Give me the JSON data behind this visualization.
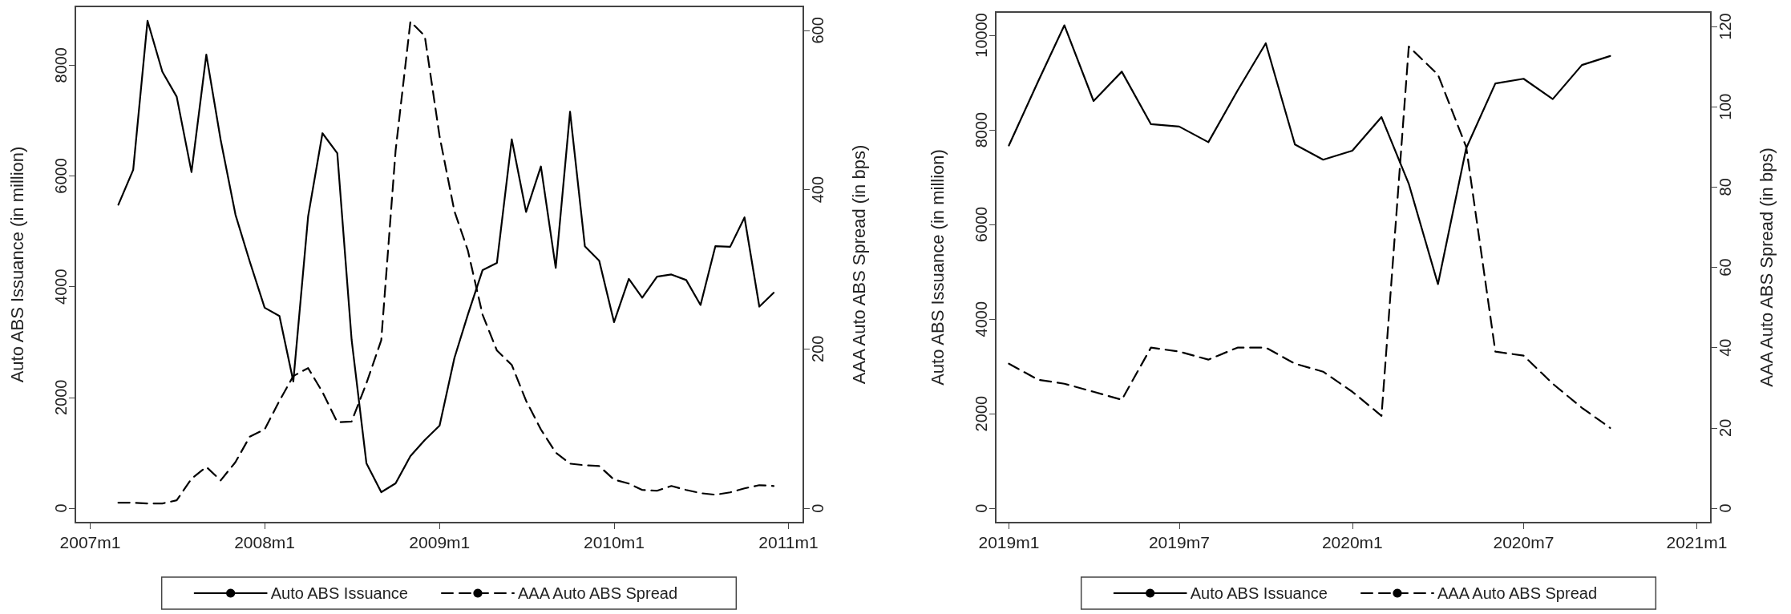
{
  "chart_data": [
    {
      "type": "line",
      "ylabel": "Auto ABS Issuance (in million)",
      "y2label": "AAA Auto ABS Spread (in bps)",
      "x": [
        "2007-03",
        "2007-04",
        "2007-05",
        "2007-06",
        "2007-07",
        "2007-08",
        "2007-09",
        "2007-10",
        "2007-11",
        "2007-12",
        "2008-01",
        "2008-02",
        "2008-03",
        "2008-04",
        "2008-05",
        "2008-06",
        "2008-07",
        "2008-08",
        "2008-09",
        "2008-10",
        "2008-11",
        "2008-12",
        "2009-01",
        "2009-02",
        "2009-03",
        "2009-04",
        "2009-05",
        "2009-06",
        "2009-07",
        "2009-08",
        "2009-09",
        "2009-10",
        "2009-11",
        "2009-12",
        "2010-01",
        "2010-02",
        "2010-03",
        "2010-04",
        "2010-05",
        "2010-06",
        "2010-07",
        "2010-08",
        "2010-09",
        "2010-10",
        "2010-11",
        "2010-12"
      ],
      "series": [
        {
          "name": "Auto ABS Issuance",
          "color": "#000000",
          "line_style": "solid",
          "values": [
            5480,
            6110,
            8800,
            7880,
            7430,
            6070,
            8190,
            6650,
            5300,
            4450,
            3620,
            3470,
            2290,
            5270,
            6770,
            6410,
            3040,
            810,
            290,
            450,
            940,
            1230,
            1490,
            2710,
            3490,
            4300,
            4430,
            6660,
            5350,
            6170,
            4340,
            7160,
            4730,
            4470,
            3360,
            4140,
            3800,
            4180,
            4220,
            4120,
            3670,
            4730,
            4720,
            5250,
            3640,
            3890
          ]
        },
        {
          "name": "AAA Auto ABS Spread",
          "color": "#000000",
          "line_style": "dashed",
          "axis": "y2",
          "values": [
            7,
            7,
            6,
            6,
            10,
            37,
            52,
            35,
            58,
            90,
            99,
            135,
            166,
            176,
            146,
            108,
            109,
            157,
            211,
            449,
            611,
            593,
            467,
            373,
            324,
            243,
            198,
            180,
            135,
            99,
            70,
            56,
            54,
            53,
            36,
            31,
            23,
            22,
            28,
            23,
            19,
            17,
            20,
            25,
            29,
            28
          ]
        }
      ],
      "xlim": [
        "2006-12",
        "2011-02"
      ],
      "xticks": [
        {
          "value": "2007-01",
          "label": "2007m1"
        },
        {
          "value": "2008-01",
          "label": "2008m1"
        },
        {
          "value": "2009-01",
          "label": "2009m1"
        },
        {
          "value": "2010-01",
          "label": "2010m1"
        },
        {
          "value": "2011-01",
          "label": "2011m1"
        }
      ],
      "ylim": [
        -260,
        9060
      ],
      "yticks": [
        0,
        2000,
        4000,
        6000,
        8000
      ],
      "y2lim": [
        -18,
        630
      ],
      "y2ticks": [
        0,
        200,
        400,
        600
      ],
      "grid": false,
      "legend": "bottom",
      "marker": "none"
    },
    {
      "type": "line",
      "ylabel": "Auto ABS Issuance (in million)",
      "y2label": "AAA Auto ABS Spread (in bps)",
      "x": [
        "2019-01",
        "2019-02",
        "2019-03",
        "2019-04",
        "2019-05",
        "2019-06",
        "2019-07",
        "2019-08",
        "2019-09",
        "2019-10",
        "2019-11",
        "2019-12",
        "2020-01",
        "2020-02",
        "2020-03",
        "2020-04",
        "2020-05",
        "2020-06",
        "2020-07",
        "2020-08",
        "2020-09",
        "2020-10"
      ],
      "series": [
        {
          "name": "Auto ABS Issuance",
          "color": "#000000",
          "line_style": "solid",
          "values": [
            7670,
            9020,
            10210,
            8610,
            9230,
            8120,
            8070,
            7740,
            8830,
            9830,
            7690,
            7370,
            7560,
            8270,
            6860,
            4740,
            7610,
            8980,
            9080,
            8650,
            9370,
            9560
          ]
        },
        {
          "name": "AAA Auto ABS Spread",
          "color": "#000000",
          "line_style": "dashed",
          "axis": "y2",
          "values": [
            36,
            32,
            31,
            29,
            27,
            40,
            39,
            37,
            40,
            40,
            36,
            34,
            29,
            23,
            115,
            108,
            90,
            39,
            38,
            31,
            25,
            20
          ]
        }
      ],
      "xlim": [
        "2018-12-18",
        "2021-01-16"
      ],
      "xticks": [
        {
          "value": "2019-01",
          "label": "2019m1"
        },
        {
          "value": "2019-07",
          "label": "2019m7"
        },
        {
          "value": "2020-01",
          "label": "2020m1"
        },
        {
          "value": "2020-07",
          "label": "2020m7"
        },
        {
          "value": "2021-01",
          "label": "2021m1"
        }
      ],
      "ylim": [
        -300,
        10490
      ],
      "yticks": [
        0,
        2000,
        4000,
        6000,
        8000,
        10000
      ],
      "y2lim": [
        -3.6,
        123.6
      ],
      "y2ticks": [
        0,
        20,
        40,
        60,
        80,
        100,
        120
      ],
      "grid": false,
      "legend": "bottom",
      "marker": "none"
    }
  ]
}
